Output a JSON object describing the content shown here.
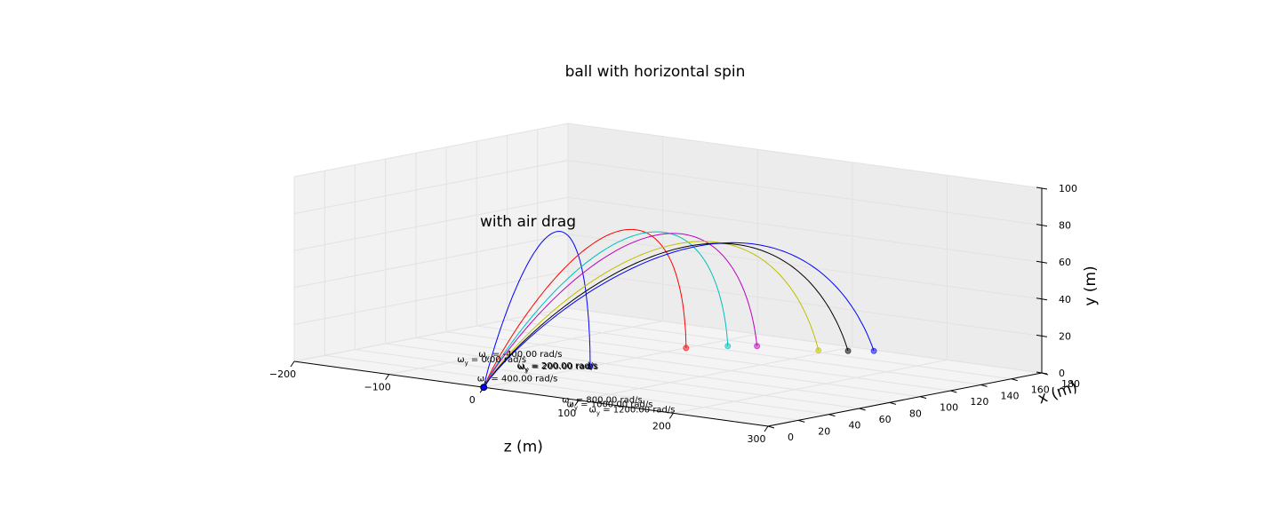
{
  "chart_data": {
    "type": "line3d",
    "title": "ball with horizontal spin",
    "annotation": "with air drag",
    "axes": {
      "z": {
        "label": "z (m)",
        "range": [
          -200,
          300
        ],
        "ticks": [
          "−200",
          "−100",
          "0",
          "100",
          "200",
          "300"
        ],
        "tick_values": [
          -200,
          -100,
          0,
          100,
          200,
          300
        ]
      },
      "x": {
        "label": "x (m)",
        "range": [
          0,
          180
        ],
        "ticks": [
          "0",
          "20",
          "40",
          "60",
          "80",
          "100",
          "120",
          "140",
          "160",
          "180"
        ],
        "tick_values": [
          0,
          20,
          40,
          60,
          80,
          100,
          120,
          140,
          160,
          180
        ]
      },
      "y": {
        "label": "y (m)",
        "range": [
          0,
          100
        ],
        "ticks": [
          "0",
          "20",
          "40",
          "60",
          "80",
          "100"
        ],
        "tick_values": [
          0,
          20,
          40,
          60,
          80,
          100
        ]
      }
    },
    "grid": true,
    "launch_point": {
      "z": 0,
      "x": 0,
      "y": 0
    },
    "series": [
      {
        "label_prefix": "ω",
        "label_sub": "y",
        "label_rest": " = -400.00 rad/s",
        "omega": -400,
        "color": "#0000ff",
        "apex_y": 62,
        "landing": {
          "z": 0,
          "x": 70,
          "y": 0
        }
      },
      {
        "label_prefix": "ω",
        "label_sub": "y",
        "label_rest": " = 0.00 rad/s",
        "omega": 0,
        "color": "#ff0000",
        "apex_y": 57,
        "landing": {
          "z": 0,
          "x": 133,
          "y": 0
        }
      },
      {
        "label_prefix": "ω",
        "label_sub": "y",
        "label_rest": " = 200.00 rad/s",
        "omega": 200,
        "color": "#00bfbf",
        "apex_y": 55,
        "landing": {
          "z": 20,
          "x": 148,
          "y": 0
        }
      },
      {
        "label_prefix": "ω",
        "label_sub": "y",
        "label_rest": " = 400.00 rad/s",
        "omega": 400,
        "color": "#bf00bf",
        "apex_y": 54,
        "landing": {
          "z": 38,
          "x": 156,
          "y": 0
        }
      },
      {
        "label_prefix": "ω",
        "label_sub": "y",
        "label_rest": " = 800.00 rad/s",
        "omega": 800,
        "color": "#bfbf00",
        "apex_y": 51,
        "landing": {
          "z": 90,
          "x": 164,
          "y": 0
        }
      },
      {
        "label_prefix": "ω",
        "label_sub": "y",
        "label_rest": " = 1000.00 rad/s",
        "omega": 1000,
        "color": "#000000",
        "apex_y": 50,
        "landing": {
          "z": 110,
          "x": 171,
          "y": 0
        }
      },
      {
        "label_prefix": "ω",
        "label_sub": "y",
        "label_rest": " = 1200.00 rad/s",
        "omega": 1200,
        "color": "#0000ff",
        "apex_y": 50,
        "landing": {
          "z": 126,
          "x": 178,
          "y": 0
        }
      }
    ],
    "extra_series_labels": [
      {
        "label_prefix": "ω",
        "label_sub": "y",
        "label_rest": " = 200.00 rad/s",
        "color": "#008000"
      }
    ]
  }
}
